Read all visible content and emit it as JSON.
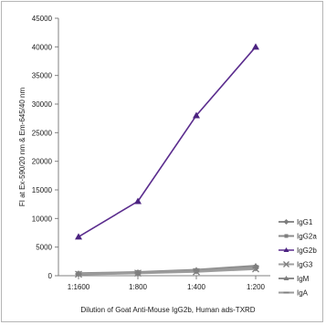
{
  "chart_data": {
    "type": "line",
    "title": "",
    "xlabel": "Dilution of Goat Anti-Mouse IgG2b, Human ads-TXRD",
    "ylabel": "FI at Ex-590/20 nm & Em-645/40 nm",
    "categories": [
      "1:1600",
      "1:800",
      "1:400",
      "1:200"
    ],
    "ylim": [
      0,
      45000
    ],
    "yticks": [
      "0",
      "5000",
      "10000",
      "15000",
      "20000",
      "25000",
      "30000",
      "35000",
      "40000",
      "45000"
    ],
    "grid": false,
    "legend_position": "right",
    "series": [
      {
        "name": "IgG1",
        "values": [
          300,
          500,
          800,
          1300
        ],
        "color": "#8c8c8c",
        "marker": "diamond"
      },
      {
        "name": "IgG2a",
        "values": [
          350,
          550,
          900,
          1500
        ],
        "color": "#8c8c8c",
        "marker": "square"
      },
      {
        "name": "IgG2b",
        "values": [
          6800,
          13000,
          28000,
          40000
        ],
        "color": "#5b2d8e",
        "marker": "triangle"
      },
      {
        "name": "IgG3",
        "values": [
          250,
          450,
          700,
          1200
        ],
        "color": "#a0a0a0",
        "marker": "x"
      },
      {
        "name": "IgM",
        "values": [
          400,
          600,
          1000,
          1700
        ],
        "color": "#8c8c8c",
        "marker": "triangle"
      },
      {
        "name": "IgA",
        "values": [
          300,
          500,
          900,
          1400
        ],
        "color": "#9a9a9a",
        "marker": "dash"
      }
    ]
  }
}
